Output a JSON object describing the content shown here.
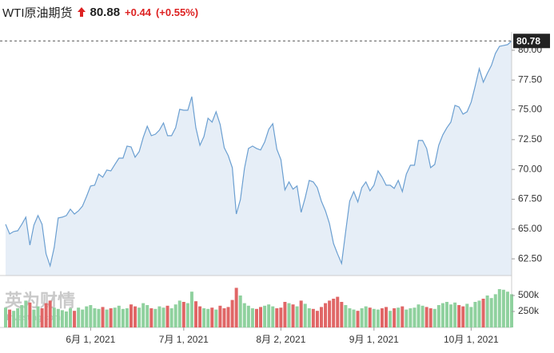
{
  "chart_data": {
    "type": "area",
    "title": "WTI原油期货",
    "last_price": "80.88",
    "change": "+0.44",
    "change_pct": "(+0.55%)",
    "watermark": "英为财情",
    "watermark_sub": "Investing.com",
    "line_color": "#6b9fd1",
    "fill_color": "#e6eef7",
    "up_color": "#8fd19e",
    "down_color": "#e06666",
    "grid": false,
    "categories": [
      null,
      null,
      null,
      null,
      null,
      null,
      null,
      null,
      null,
      null,
      null,
      null,
      null,
      null,
      null,
      null,
      null,
      null,
      null,
      null,
      null,
      "6月 1, 2021",
      null,
      null,
      null,
      null,
      null,
      null,
      null,
      null,
      null,
      null,
      null,
      null,
      null,
      null,
      null,
      null,
      null,
      null,
      null,
      null,
      null,
      null,
      "7月 1, 2021",
      null,
      null,
      null,
      null,
      null,
      null,
      null,
      null,
      null,
      null,
      null,
      null,
      null,
      null,
      null,
      null,
      null,
      null,
      null,
      null,
      null,
      null,
      null,
      "8月 2, 2021",
      null,
      null,
      null,
      null,
      null,
      null,
      null,
      null,
      null,
      null,
      null,
      null,
      null,
      null,
      null,
      null,
      null,
      null,
      null,
      null,
      null,
      null,
      "9月 1, 2021",
      null,
      null,
      null,
      null,
      null,
      null,
      null,
      null,
      null,
      null,
      null,
      null,
      null,
      null,
      null,
      null,
      null,
      null,
      null,
      null,
      null,
      null,
      null,
      "10月 1, 2021",
      null,
      null,
      null,
      null,
      null,
      null,
      null,
      null,
      null,
      null
    ],
    "values": [
      65.4,
      64.59,
      64.79,
      64.86,
      65.4,
      66.0,
      63.65,
      65.33,
      66.13,
      65.4,
      62.92,
      61.91,
      63.45,
      65.93,
      66.0,
      66.13,
      66.67,
      66.26,
      66.53,
      66.93,
      67.74,
      68.61,
      68.68,
      69.61,
      69.35,
      69.95,
      69.88,
      70.42,
      70.95,
      70.95,
      71.96,
      71.89,
      71.02,
      71.49,
      72.7,
      73.63,
      72.83,
      72.96,
      73.3,
      73.9,
      72.83,
      72.83,
      73.5,
      75.04,
      74.97,
      74.97,
      76.11,
      73.5,
      72.03,
      72.76,
      74.3,
      73.97,
      74.84,
      73.77,
      71.83,
      71.16,
      70.15,
      66.26,
      67.47,
      70.09,
      71.76,
      71.96,
      71.76,
      71.63,
      72.3,
      73.37,
      73.84,
      71.69,
      70.82,
      68.28,
      68.95,
      68.35,
      68.61,
      66.4,
      67.61,
      69.08,
      68.95,
      68.48,
      67.34,
      66.53,
      65.47,
      63.79,
      62.92,
      62.12,
      64.79,
      67.34,
      68.14,
      67.27,
      68.48,
      68.95,
      68.21,
      68.68,
      69.88,
      69.35,
      68.68,
      68.68,
      68.41,
      69.08,
      68.14,
      69.61,
      70.35,
      70.35,
      72.43,
      72.43,
      71.76,
      70.15,
      70.42,
      72.03,
      72.9,
      73.5,
      73.97,
      75.38,
      75.24,
      74.64,
      74.84,
      75.65,
      76.99,
      78.46,
      77.32,
      78.06,
      78.73,
      79.73,
      80.33,
      80.4,
      80.47,
      80.78
    ],
    "ylim": [
      61.1,
      81.2
    ],
    "yticks": [
      {
        "value": 62.5,
        "label": "62.50"
      },
      {
        "value": 65,
        "label": "65.00"
      },
      {
        "value": 67.5,
        "label": "67.50"
      },
      {
        "value": 70,
        "label": "70.00"
      },
      {
        "value": 72.5,
        "label": "72.50"
      },
      {
        "value": 75,
        "label": "75.00"
      },
      {
        "value": 77.5,
        "label": "77.50"
      },
      {
        "value": 80,
        "label": "80.00"
      }
    ],
    "volumes": [
      310000,
      280000,
      260000,
      300000,
      350000,
      420000,
      390000,
      280000,
      330000,
      300000,
      380000,
      420000,
      310000,
      290000,
      270000,
      250000,
      300000,
      260000,
      310000,
      280000,
      330000,
      350000,
      300000,
      290000,
      320000,
      280000,
      300000,
      310000,
      340000,
      290000,
      300000,
      360000,
      330000,
      310000,
      380000,
      350000,
      300000,
      290000,
      330000,
      310000,
      340000,
      300000,
      360000,
      420000,
      400000,
      380000,
      560000,
      410000,
      330000,
      300000,
      290000,
      310000,
      280000,
      340000,
      300000,
      320000,
      430000,
      620000,
      500000,
      380000,
      340000,
      300000,
      290000,
      320000,
      340000,
      360000,
      330000,
      300000,
      310000,
      400000,
      380000,
      360000,
      330000,
      420000,
      370000,
      300000,
      290000,
      260000,
      320000,
      380000,
      420000,
      450000,
      480000,
      400000,
      350000,
      300000,
      280000,
      260000,
      300000,
      330000,
      310000,
      290000,
      280000,
      300000,
      320000,
      260000,
      300000,
      310000,
      330000,
      280000,
      300000,
      310000,
      360000,
      340000,
      320000,
      300000,
      290000,
      350000,
      380000,
      400000,
      360000,
      390000,
      350000,
      330000,
      370000,
      320000,
      400000,
      420000,
      450000,
      500000,
      460000,
      520000,
      600000,
      590000,
      560000,
      520000
    ],
    "vlim": [
      0,
      750000
    ],
    "vticks": [
      {
        "value": 250000,
        "label": "250k"
      },
      {
        "value": 500000,
        "label": "500k"
      }
    ]
  }
}
